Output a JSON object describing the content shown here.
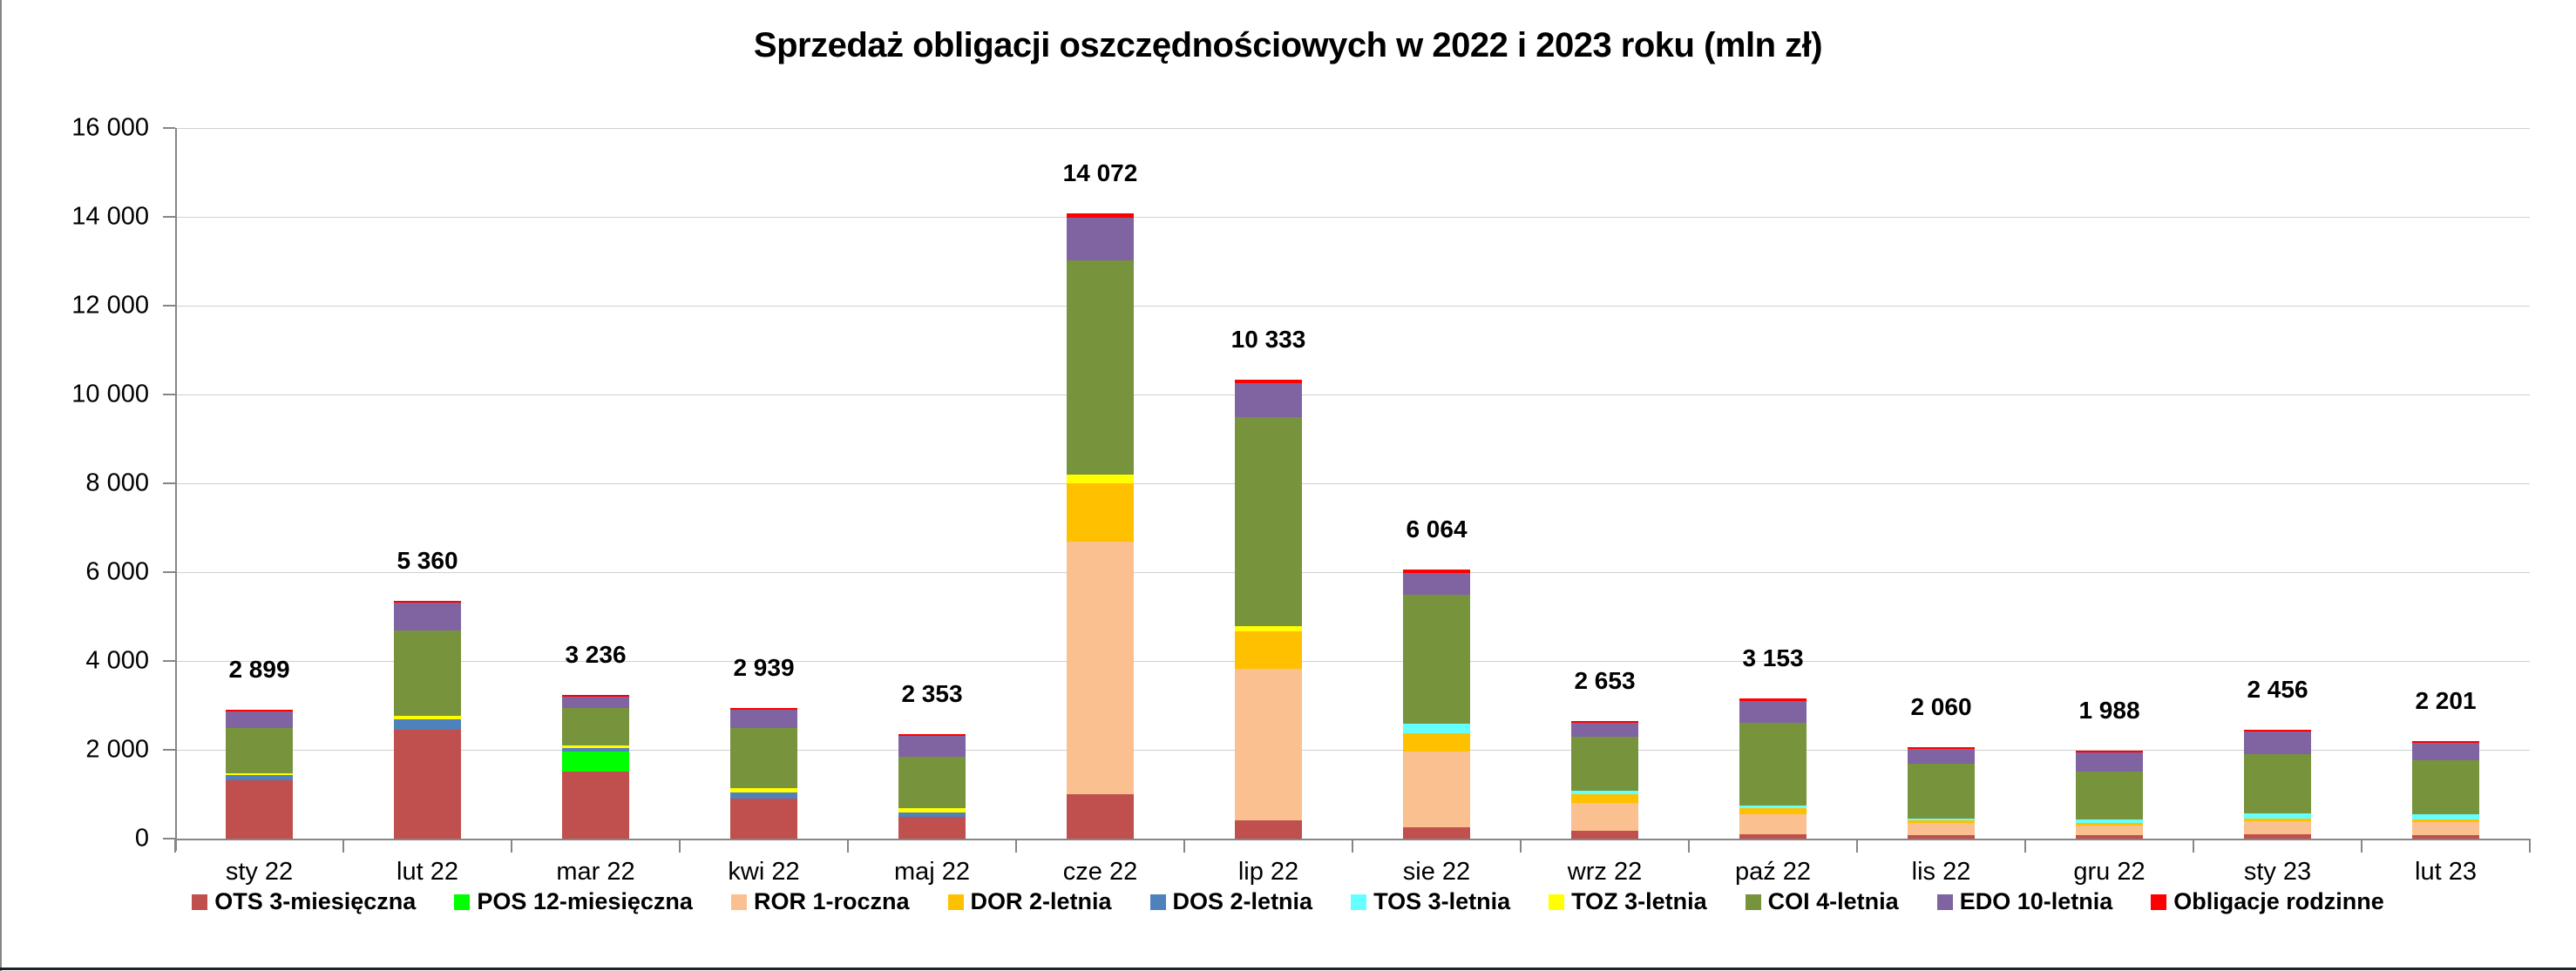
{
  "title": "Sprzedaż obligacji oszczędnościowych w 2022 i 2023 roku (mln zł)",
  "chart_data": {
    "type": "bar",
    "stacked": true,
    "title": "Sprzedaż obligacji oszczędnościowych w 2022 i 2023 roku (mln zł)",
    "xlabel": "",
    "ylabel": "",
    "ylim": [
      0,
      16000
    ],
    "yticks": [
      0,
      2000,
      4000,
      6000,
      8000,
      10000,
      12000,
      14000,
      16000
    ],
    "ytick_labels": [
      "0",
      "2 000",
      "4 000",
      "6 000",
      "8 000",
      "10 000",
      "12 000",
      "14 000",
      "16 000"
    ],
    "grid": true,
    "legend_position": "bottom",
    "categories": [
      "sty 22",
      "lut 22",
      "mar 22",
      "kwi 22",
      "maj 22",
      "cze 22",
      "lip 22",
      "sie 22",
      "wrz 22",
      "paź 22",
      "lis 22",
      "gru 22",
      "sty 23",
      "lut 23"
    ],
    "totals": [
      2899,
      5360,
      3236,
      2939,
      2353,
      14072,
      10333,
      6064,
      2653,
      3153,
      2060,
      1988,
      2456,
      2201
    ],
    "total_labels": [
      "2 899",
      "5 360",
      "3 236",
      "2 939",
      "2 353",
      "14 072",
      "10 333",
      "6 064",
      "2 653",
      "3 153",
      "2 060",
      "1 988",
      "2 456",
      "2 201"
    ],
    "series": [
      {
        "name": "OTS 3-miesięczna",
        "color": "#C0504D",
        "values": [
          1314,
          2451,
          1510,
          902,
          490,
          1000,
          412,
          255,
          176,
          98,
          78,
          78,
          98,
          78
        ]
      },
      {
        "name": "POS 12-miesięczna",
        "color": "#00FF00",
        "values": [
          0,
          0,
          450,
          0,
          0,
          0,
          0,
          0,
          0,
          0,
          0,
          0,
          0,
          0
        ]
      },
      {
        "name": "ROR 1-roczna",
        "color": "#FAC090",
        "values": [
          0,
          0,
          0,
          0,
          0,
          5686,
          3412,
          1706,
          628,
          451,
          275,
          216,
          294,
          295
        ]
      },
      {
        "name": "DOR 2-letnia",
        "color": "#FFC000",
        "values": [
          0,
          0,
          0,
          0,
          0,
          1314,
          843,
          412,
          196,
          137,
          59,
          59,
          59,
          58
        ]
      },
      {
        "name": "DOS 2-letnia",
        "color": "#4F81BD",
        "values": [
          117,
          235,
          79,
          137,
          98,
          0,
          0,
          0,
          0,
          0,
          0,
          0,
          0,
          0
        ]
      },
      {
        "name": "TOS 3-letnia",
        "color": "#66FFFF",
        "values": [
          0,
          0,
          0,
          0,
          0,
          0,
          0,
          215,
          78,
          59,
          39,
          78,
          118,
          118
        ]
      },
      {
        "name": "TOZ 3-letnia",
        "color": "#FFFF00",
        "values": [
          39,
          79,
          59,
          98,
          98,
          196,
          117,
          0,
          0,
          0,
          0,
          0,
          0,
          0
        ]
      },
      {
        "name": "COI 4-letnia",
        "color": "#77933C",
        "values": [
          1020,
          1921,
          843,
          1353,
          1157,
          4824,
          4706,
          2902,
          1216,
          1863,
          1235,
          1079,
          1333,
          1216
        ]
      },
      {
        "name": "EDO 10-letnia",
        "color": "#8064A2",
        "values": [
          373,
          628,
          255,
          412,
          477,
          960,
          765,
          490,
          314,
          490,
          334,
          431,
          510,
          392
        ]
      },
      {
        "name": "Obligacje rodzinne",
        "color": "#FF0000",
        "values": [
          36,
          46,
          40,
          37,
          33,
          92,
          78,
          84,
          45,
          55,
          40,
          47,
          44,
          44
        ]
      }
    ]
  }
}
